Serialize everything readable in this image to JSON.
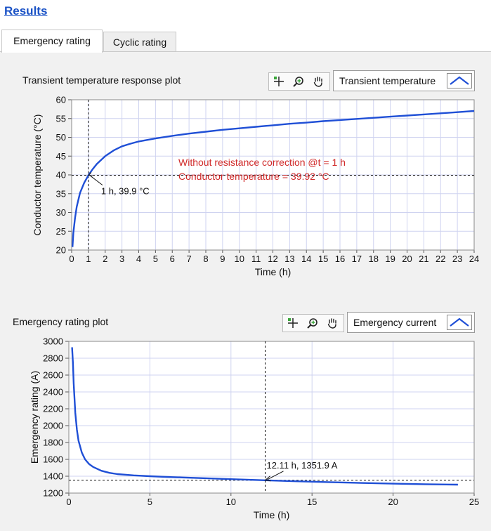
{
  "header": {
    "results_label": "Results"
  },
  "tabs": [
    {
      "label": "Emergency rating",
      "active": true
    },
    {
      "label": "Cyclic rating",
      "active": false
    }
  ],
  "colors": {
    "curve": "#1f4fd6",
    "annotation_text": "#d02a2a",
    "plot_bg": "#ffffff",
    "grid": "#cfd3f0",
    "link": "#1a52c6"
  },
  "plot1": {
    "title": "Transient temperature response plot",
    "legend_label": "Transient temperature",
    "tools": [
      "cursor-crosshair-icon",
      "zoom-icon",
      "pan-hand-icon"
    ],
    "annotation_line1": "Without resistance correction @t = 1 h",
    "annotation_line2": "Conductor temperature = 39.92 °C",
    "cursor_label": "1 h,  39.9 °C",
    "chart_data": {
      "type": "line",
      "xlabel": "Time (h)",
      "ylabel": "Conductor temperature (°C)",
      "xlim": [
        0,
        24
      ],
      "ylim": [
        20,
        60
      ],
      "x_ticks": [
        0,
        1,
        2,
        3,
        4,
        5,
        6,
        7,
        8,
        9,
        10,
        11,
        12,
        13,
        14,
        15,
        16,
        17,
        18,
        19,
        20,
        21,
        22,
        23,
        24
      ],
      "y_ticks": [
        20,
        25,
        30,
        35,
        40,
        45,
        50,
        55,
        60
      ],
      "cursor": {
        "x": 1,
        "y": 39.9
      },
      "series": [
        {
          "name": "Transient temperature",
          "x": [
            0.05,
            0.1,
            0.2,
            0.3,
            0.5,
            0.75,
            1,
            1.25,
            1.5,
            2,
            2.5,
            3,
            3.5,
            4,
            5,
            6,
            7,
            8,
            9,
            10,
            11,
            12,
            13,
            14,
            15,
            16,
            17,
            18,
            19,
            20,
            21,
            22,
            23,
            24
          ],
          "y": [
            20.8,
            24.5,
            28.5,
            31.5,
            35.2,
            37.9,
            39.9,
            41.5,
            42.9,
            45,
            46.5,
            47.6,
            48.3,
            48.9,
            49.7,
            50.4,
            51,
            51.5,
            52,
            52.4,
            52.8,
            53.2,
            53.6,
            53.9,
            54.3,
            54.6,
            54.9,
            55.2,
            55.5,
            55.8,
            56.1,
            56.4,
            56.7,
            57
          ]
        }
      ]
    }
  },
  "plot2": {
    "title": "Emergency rating plot",
    "legend_label": "Emergency current",
    "tools": [
      "cursor-crosshair-icon",
      "zoom-icon",
      "pan-hand-icon"
    ],
    "cursor_label": "12.11 h,  1351.9 A",
    "chart_data": {
      "type": "line",
      "xlabel": "Time (h)",
      "ylabel": "Emergency rating (A)",
      "xlim": [
        0,
        25
      ],
      "ylim": [
        1200,
        3000
      ],
      "x_ticks": [
        0,
        5,
        10,
        15,
        20,
        25
      ],
      "y_ticks": [
        1200,
        1400,
        1600,
        1800,
        2000,
        2200,
        2400,
        2600,
        2800,
        3000
      ],
      "cursor": {
        "x": 12.11,
        "y": 1351.9
      },
      "series": [
        {
          "name": "Emergency current",
          "x": [
            0.2,
            0.25,
            0.3,
            0.4,
            0.5,
            0.6,
            0.8,
            1,
            1.25,
            1.5,
            2,
            2.5,
            3,
            4,
            5,
            6,
            7,
            8,
            10,
            12.11,
            14,
            16,
            18,
            20,
            22,
            24
          ],
          "y": [
            2930,
            2750,
            2500,
            2150,
            1950,
            1820,
            1680,
            1600,
            1545,
            1510,
            1465,
            1440,
            1425,
            1410,
            1400,
            1392,
            1385,
            1378,
            1365,
            1351.9,
            1340,
            1330,
            1320,
            1312,
            1305,
            1300
          ]
        }
      ]
    }
  }
}
